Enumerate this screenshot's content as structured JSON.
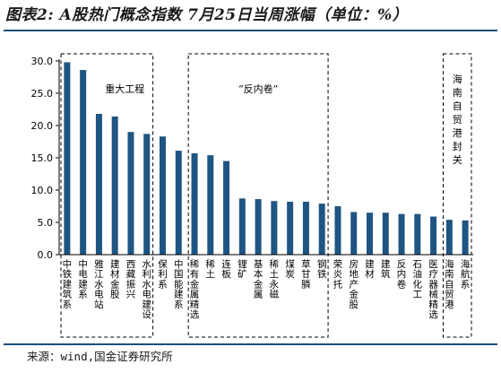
{
  "title": "图表2: A股热门概念指数 7月25日当周涨幅（单位：%）",
  "source": "来源：wind,国金证券研究所",
  "colors": {
    "bar": "#1f5582",
    "axis": "#000000",
    "rule": "#1f4e79"
  },
  "chart_data": {
    "type": "bar",
    "title": "",
    "xlabel": "",
    "ylabel": "",
    "ylim": [
      0,
      30
    ],
    "yticks": [
      0,
      5,
      10,
      15,
      20,
      25,
      30
    ],
    "ytick_labels": [
      "0.0",
      "5.0",
      "10.0",
      "15.0",
      "20.0",
      "25.0",
      "30.0"
    ],
    "grid": false,
    "categories": [
      "中铁建筑系",
      "中电建系",
      "雅江水电站",
      "建材金股",
      "西藏振兴",
      "水利水电建设",
      "保利系",
      "中国能建系",
      "稀有金属精选",
      "稀土",
      "连板",
      "锂矿",
      "基本金属",
      "稀土永磁",
      "煤炭",
      "草甘膦",
      "钢铁",
      "荣炎托",
      "房地产金股",
      "建材",
      "建筑",
      "反内卷",
      "石油化工",
      "医疗器械精选",
      "海南自贸港",
      "海航系"
    ],
    "values": [
      29.8,
      28.6,
      21.8,
      21.4,
      19.0,
      18.7,
      18.3,
      16.1,
      15.7,
      15.4,
      14.5,
      8.7,
      8.6,
      8.3,
      8.2,
      8.2,
      7.9,
      7.5,
      6.6,
      6.5,
      6.5,
      6.3,
      6.3,
      5.9,
      5.4,
      5.3
    ],
    "annotations": [
      {
        "text": "重大工程",
        "first": 0,
        "last": 5
      },
      {
        "text": "“反内卷”",
        "first": 8,
        "last": 16
      },
      {
        "text": "海南自贸港封关",
        "first": 24,
        "last": 25
      }
    ]
  }
}
